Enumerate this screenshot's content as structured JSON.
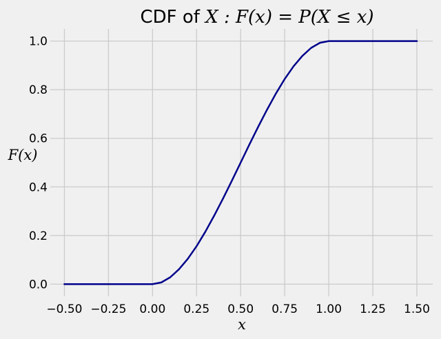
{
  "chart_data": {
    "type": "line",
    "title_prefix": "CDF of ",
    "title_math": "X : F(x) = P(X ≤ x)",
    "xlabel": "x",
    "ylabel": "F(x)",
    "xlim": [
      -0.58,
      1.59
    ],
    "ylim": [
      -0.05,
      1.05
    ],
    "xticks": [
      -0.5,
      -0.25,
      0.0,
      0.25,
      0.5,
      0.75,
      1.0,
      1.25,
      1.5
    ],
    "xtick_labels": [
      "−0.50",
      "−0.25",
      "0.00",
      "0.25",
      "0.50",
      "0.75",
      "1.00",
      "1.25",
      "1.50"
    ],
    "yticks": [
      0.0,
      0.2,
      0.4,
      0.6,
      0.8,
      1.0
    ],
    "ytick_labels": [
      "0.0",
      "0.2",
      "0.4",
      "0.6",
      "0.8",
      "1.0"
    ],
    "grid": true,
    "legend": "none",
    "series": [
      {
        "color": "#00008b",
        "x": [
          -0.5,
          0.0,
          0.05,
          0.1,
          0.15,
          0.2,
          0.25,
          0.3,
          0.35,
          0.4,
          0.45,
          0.5,
          0.55,
          0.6,
          0.65,
          0.7,
          0.75,
          0.8,
          0.85,
          0.9,
          0.95,
          1.0,
          1.5
        ],
        "y": [
          0.0,
          0.0,
          0.007,
          0.028,
          0.061,
          0.104,
          0.156,
          0.216,
          0.282,
          0.352,
          0.425,
          0.5,
          0.575,
          0.648,
          0.718,
          0.784,
          0.844,
          0.896,
          0.939,
          0.972,
          0.993,
          1.0,
          1.0
        ]
      }
    ]
  }
}
